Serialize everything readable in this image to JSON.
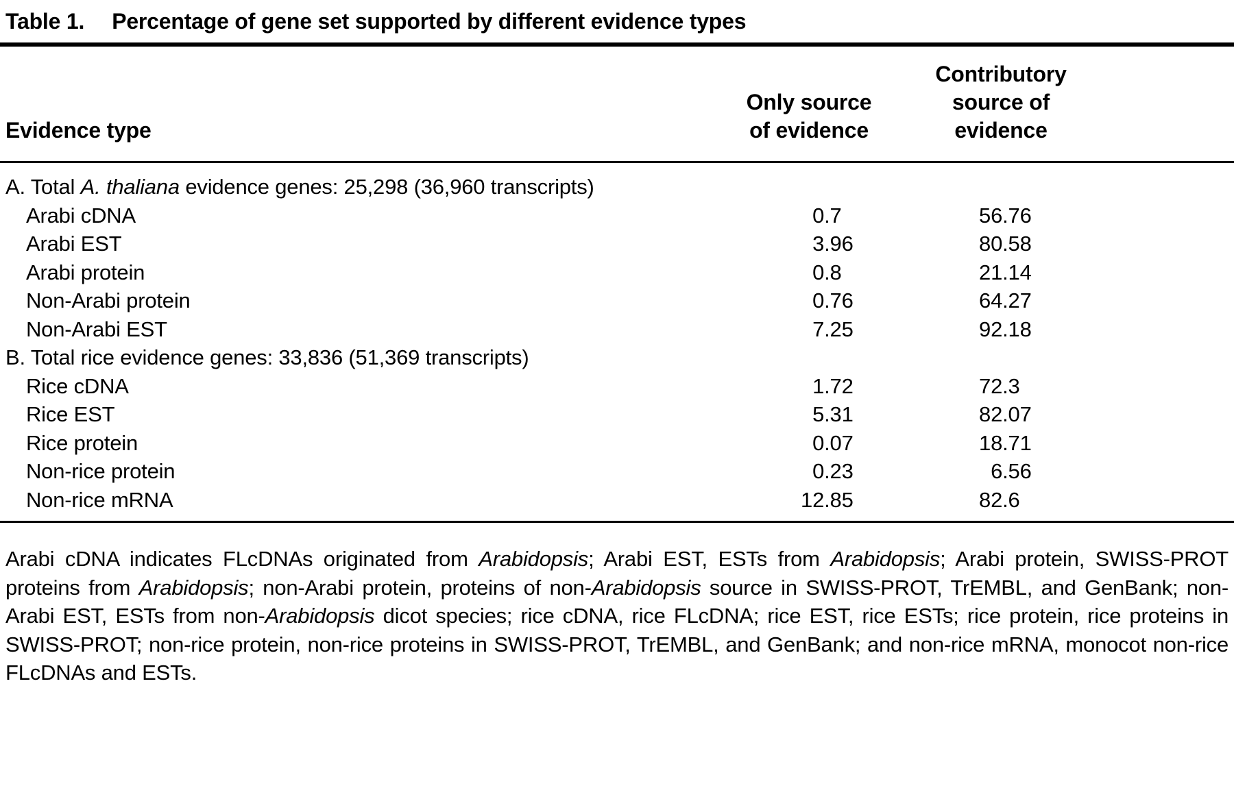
{
  "document": {
    "table_label": "Table 1.",
    "table_title": "Percentage of gene set supported by different evidence types"
  },
  "columns": {
    "evidence_type": "Evidence type",
    "only_source_lines": [
      "Only source",
      "of evidence"
    ],
    "contributory_lines": [
      "Contributory",
      "source of",
      "evidence"
    ]
  },
  "sections": [
    {
      "header_segments": [
        {
          "text": "A. Total ",
          "italic": false
        },
        {
          "text": "A. thaliana",
          "italic": true
        },
        {
          "text": " evidence genes: 25,298 (36,960 transcripts)",
          "italic": false
        }
      ],
      "rows": [
        {
          "label": "Arabi cDNA",
          "only": "0.7",
          "contributory": "56.76"
        },
        {
          "label": "Arabi EST",
          "only": "3.96",
          "contributory": "80.58"
        },
        {
          "label": "Arabi protein",
          "only": "0.8",
          "contributory": "21.14"
        },
        {
          "label": "Non-Arabi protein",
          "only": "0.76",
          "contributory": "64.27"
        },
        {
          "label": "Non-Arabi EST",
          "only": "7.25",
          "contributory": "92.18"
        }
      ]
    },
    {
      "header_segments": [
        {
          "text": "B. Total rice evidence genes: 33,836 (51,369 transcripts)",
          "italic": false
        }
      ],
      "rows": [
        {
          "label": "Rice cDNA",
          "only": "1.72",
          "contributory": "72.3"
        },
        {
          "label": "Rice EST",
          "only": "5.31",
          "contributory": "82.07"
        },
        {
          "label": "Rice protein",
          "only": "0.07",
          "contributory": "18.71"
        },
        {
          "label": "Non-rice protein",
          "only": "0.23",
          "contributory": "6.56"
        },
        {
          "label": "Non-rice mRNA",
          "only": "12.85",
          "contributory": "82.6"
        }
      ]
    }
  ],
  "footnote_segments": [
    {
      "text": "Arabi cDNA indicates FLcDNAs originated from ",
      "italic": false
    },
    {
      "text": "Arabidopsis",
      "italic": true
    },
    {
      "text": "; Arabi EST, ESTs from ",
      "italic": false
    },
    {
      "text": "Arabidopsis",
      "italic": true
    },
    {
      "text": "; Arabi protein, SWISS-PROT proteins from ",
      "italic": false
    },
    {
      "text": "Arabidopsis",
      "italic": true
    },
    {
      "text": "; non-Arabi protein, proteins of non-",
      "italic": false
    },
    {
      "text": "Arabidopsis",
      "italic": true
    },
    {
      "text": " source in SWISS-PROT, TrEMBL, and GenBank; non-Arabi EST, ESTs from non-",
      "italic": false
    },
    {
      "text": "Arabidopsis",
      "italic": true
    },
    {
      "text": " dicot species; rice cDNA, rice FLcDNA; rice EST, rice ESTs; rice protein, rice proteins in SWISS-PROT; non-rice protein, non-rice proteins in SWISS-PROT, TrEMBL, and GenBank; and non-rice mRNA, monocot non-rice FLcDNAs and ESTs.",
      "italic": false
    }
  ]
}
